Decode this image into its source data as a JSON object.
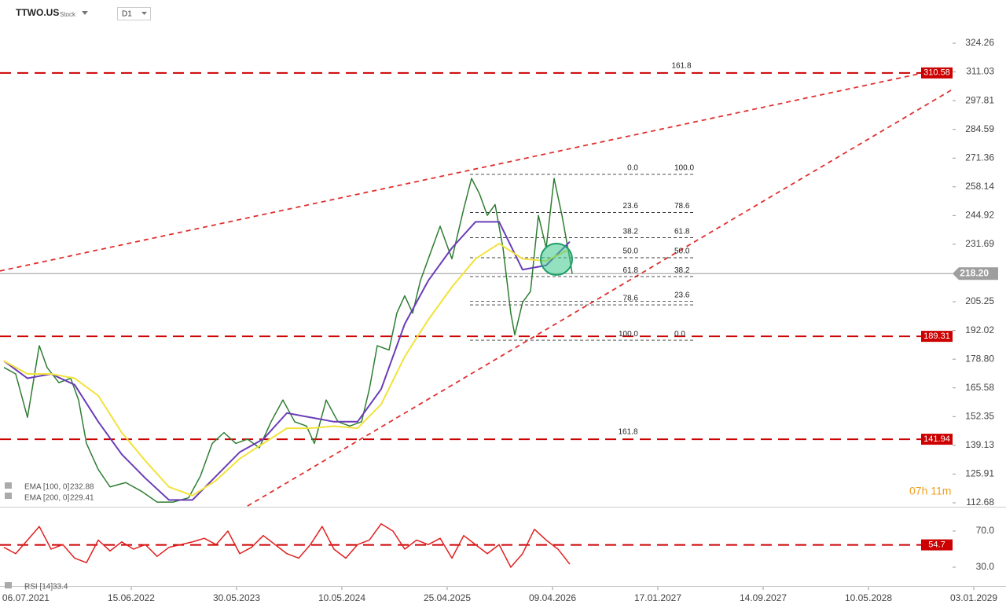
{
  "header": {
    "symbol": "TTWO.US",
    "kind": "Stock",
    "timeframe": "D1"
  },
  "countdown": "07h 11m",
  "chart_data": [
    {
      "type": "line",
      "xlim": [
        -0.246,
        9.306
      ],
      "ylim": [
        110.87,
        344.15
      ],
      "yticks": [
        324.26,
        311.03,
        297.81,
        284.59,
        271.36,
        258.14,
        244.92,
        231.69,
        205.25,
        192.02,
        {
          "value": 178.8,
          "label": "178.80"
        },
        165.58,
        152.35,
        139.13,
        125.91,
        112.68
      ],
      "series": [
        {
          "color": "#2e7d32",
          "x": [
            -0.209,
            -0.097,
            0.015,
            0.127,
            0.201,
            0.313,
            0.425,
            0.5,
            0.575,
            0.687,
            0.799,
            0.948,
            1.097,
            1.246,
            1.396,
            1.545,
            1.657,
            1.769,
            1.881,
            1.993,
            2.104,
            2.216,
            2.328,
            2.44,
            2.552,
            2.664,
            2.739,
            2.851,
            2.963,
            3.075,
            3.187,
            3.261,
            3.336,
            3.448,
            3.522,
            3.597,
            3.672,
            3.746,
            3.821,
            3.933,
            4.045,
            4.157,
            4.231,
            4.306,
            4.381,
            4.455,
            4.53,
            4.604,
            4.642,
            4.716,
            4.791,
            4.866,
            4.94,
            5.015,
            5.09,
            5.164,
            5.187
          ],
          "values": [
            175,
            172,
            152,
            185,
            175,
            168,
            170,
            160,
            140,
            128,
            120,
            122,
            118,
            113,
            113,
            115,
            125,
            140,
            145,
            140,
            142,
            138,
            150,
            160,
            150,
            148,
            140,
            160,
            150,
            148,
            150,
            165,
            185,
            183,
            200,
            208,
            200,
            215,
            225,
            240,
            225,
            248,
            262,
            255,
            245,
            250,
            230,
            200,
            190,
            205,
            210,
            245,
            230,
            262,
            245,
            225,
            218.2
          ]
        },
        {
          "name": "EMA [100, 0]",
          "legend_value": "232.88",
          "color": "#6a3db8",
          "x": [
            -0.209,
            0.015,
            0.239,
            0.463,
            0.687,
            0.91,
            1.134,
            1.358,
            1.582,
            1.806,
            2.03,
            2.254,
            2.478,
            2.701,
            2.925,
            3.149,
            3.373,
            3.597,
            3.821,
            4.045,
            4.269,
            4.493,
            4.716,
            4.94,
            5.164
          ],
          "values": [
            178,
            170,
            172,
            167,
            150,
            135,
            124,
            114,
            114,
            125,
            136,
            142,
            154,
            152,
            150,
            150,
            165,
            195,
            215,
            230,
            242,
            242,
            220,
            222,
            232.88
          ]
        },
        {
          "name": "EMA [200, 0]",
          "legend_value": "229.41",
          "color": "#f2e23a",
          "x": [
            -0.209,
            0.015,
            0.239,
            0.463,
            0.687,
            0.91,
            1.134,
            1.358,
            1.582,
            1.806,
            2.03,
            2.254,
            2.478,
            2.701,
            2.925,
            3.149,
            3.373,
            3.597,
            3.821,
            4.045,
            4.269,
            4.493,
            4.716,
            4.94,
            5.164
          ],
          "values": [
            178,
            172,
            172,
            170,
            162,
            145,
            132,
            120,
            116,
            123,
            133,
            140,
            147,
            147,
            148,
            147,
            158,
            180,
            197,
            212,
            225,
            232,
            225,
            224,
            229.41
          ]
        }
      ],
      "levels": [
        {
          "value": 310.58,
          "color": "#cc0000"
        },
        {
          "value": 189.31,
          "color": "#cc0000"
        },
        {
          "value": 141.94,
          "color": "#cc0000"
        }
      ],
      "last_price": {
        "value": 218.2,
        "label": "218.20"
      },
      "trend_lines": [
        {
          "x": [
            -0.246,
            8.485
          ],
          "values": [
            219.4,
            310.2
          ]
        },
        {
          "x": [
            2.104,
            8.784
          ],
          "values": [
            111.2,
            302.6
          ]
        }
      ],
      "fib_left": [
        {
          "label": "0.0",
          "price": 263.9
        },
        {
          "label": "23.6",
          "price": 246.3
        },
        {
          "label": "38.2",
          "price": 234.7
        },
        {
          "label": "50.0",
          "price": 225.5
        },
        {
          "label": "61.8",
          "price": 216.8
        },
        {
          "label": "78.6",
          "price": 203.8
        },
        {
          "label": "100.0",
          "price": 187.5
        }
      ],
      "fib_right": [
        {
          "label": "100.0",
          "price": 263.9
        },
        {
          "label": "78.6",
          "price": 246.3
        },
        {
          "label": "61.8",
          "price": 234.7
        },
        {
          "label": "50.0",
          "price": 225.5
        },
        {
          "label": "38.2",
          "price": 216.8
        },
        {
          "label": "23.6",
          "price": 205.4
        },
        {
          "label": "0.0",
          "price": 187.5
        }
      ],
      "fib_extensions": [
        {
          "label": "161.8",
          "price": 310.58
        },
        {
          "label": "161.8",
          "price": 141.94
        }
      ]
    },
    {
      "type": "line",
      "title": "RSI [14]",
      "legend_value": "33.4",
      "xlim": [
        -0.246,
        9.306
      ],
      "ylim": [
        10,
        94.3
      ],
      "yticks": [
        {
          "value": 70,
          "label": "70.0"
        },
        {
          "value": 30,
          "label": "30.0"
        }
      ],
      "xticks": [
        {
          "value": 0,
          "label": "06.07.2021"
        },
        {
          "value": 1,
          "label": "15.06.2022"
        },
        {
          "value": 2,
          "label": "30.05.2023"
        },
        {
          "value": 3,
          "label": "10.05.2024"
        },
        {
          "value": 4,
          "label": "25.04.2025"
        },
        {
          "value": 5,
          "label": "09.04.2026"
        },
        {
          "value": 6,
          "label": "17.01.2027"
        },
        {
          "value": 7,
          "label": "14.09.2027"
        },
        {
          "value": 8,
          "label": "10.05.2028"
        },
        {
          "value": 9,
          "label": "03.01.2029"
        }
      ],
      "series": [
        {
          "color": "#e02020",
          "x": [
            -0.209,
            -0.097,
            0.015,
            0.127,
            0.239,
            0.351,
            0.463,
            0.575,
            0.687,
            0.799,
            0.91,
            1.022,
            1.134,
            1.246,
            1.358,
            1.47,
            1.582,
            1.694,
            1.806,
            1.918,
            2.03,
            2.142,
            2.254,
            2.366,
            2.478,
            2.59,
            2.701,
            2.813,
            2.925,
            3.037,
            3.149,
            3.261,
            3.373,
            3.485,
            3.597,
            3.709,
            3.821,
            3.933,
            4.045,
            4.157,
            4.269,
            4.381,
            4.493,
            4.604,
            4.716,
            4.828,
            4.94,
            5.052,
            5.164
          ],
          "values": [
            52,
            45,
            60,
            75,
            50,
            55,
            40,
            35,
            60,
            48,
            58,
            50,
            55,
            42,
            52,
            55,
            58,
            62,
            55,
            70,
            45,
            52,
            65,
            55,
            45,
            40,
            55,
            75,
            50,
            40,
            55,
            60,
            78,
            70,
            50,
            60,
            55,
            62,
            40,
            65,
            55,
            45,
            55,
            30,
            45,
            72,
            60,
            50,
            33.4
          ]
        }
      ],
      "levels": [
        {
          "value": 54.7,
          "color": "#cc0000"
        }
      ]
    }
  ]
}
